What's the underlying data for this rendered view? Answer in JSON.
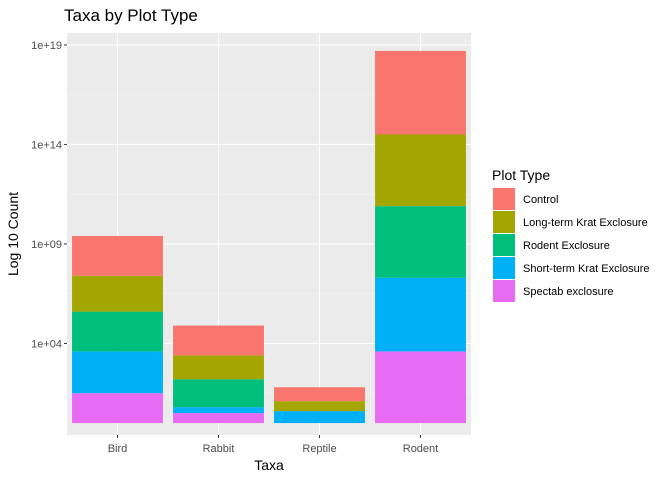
{
  "chart_data": {
    "type": "bar",
    "stacked": true,
    "title": "Taxa by Plot Type",
    "xlabel": "Taxa",
    "ylabel": "Log 10 Count",
    "y_scale": "log10",
    "ylim_log10": [
      -0.6,
      19.6
    ],
    "y_ticks": [
      {
        "log10": 4,
        "label": "1e+04"
      },
      {
        "log10": 9,
        "label": "1e+09"
      },
      {
        "log10": 14,
        "label": "1e+14"
      },
      {
        "log10": 19,
        "label": "1e+19"
      }
    ],
    "categories": [
      "Bird",
      "Rabbit",
      "Reptile",
      "Rodent"
    ],
    "legend": {
      "title": "Plot Type",
      "position": "right"
    },
    "series": [
      {
        "name": "Spectab exclosure",
        "color": "#E76BF3",
        "segment_log10": [
          1.5,
          0.5,
          0.0,
          3.6
        ]
      },
      {
        "name": "Short-term Krat Exclosure",
        "color": "#00B0F6",
        "segment_log10": [
          2.1,
          0.3,
          0.6,
          3.7
        ]
      },
      {
        "name": "Rodent Exclosure",
        "color": "#00BF7D",
        "segment_log10": [
          2.0,
          1.4,
          0.0,
          3.6
        ]
      },
      {
        "name": "Long-term Krat Exclosure",
        "color": "#A3A500",
        "segment_log10": [
          1.8,
          1.2,
          0.5,
          3.6
        ]
      },
      {
        "name": "Control",
        "color": "#F8766D",
        "segment_log10": [
          2.0,
          1.5,
          0.7,
          4.2
        ]
      }
    ],
    "legend_order": [
      "Control",
      "Long-term Krat Exclosure",
      "Rodent Exclosure",
      "Short-term Krat Exclosure",
      "Spectab exclosure"
    ]
  }
}
